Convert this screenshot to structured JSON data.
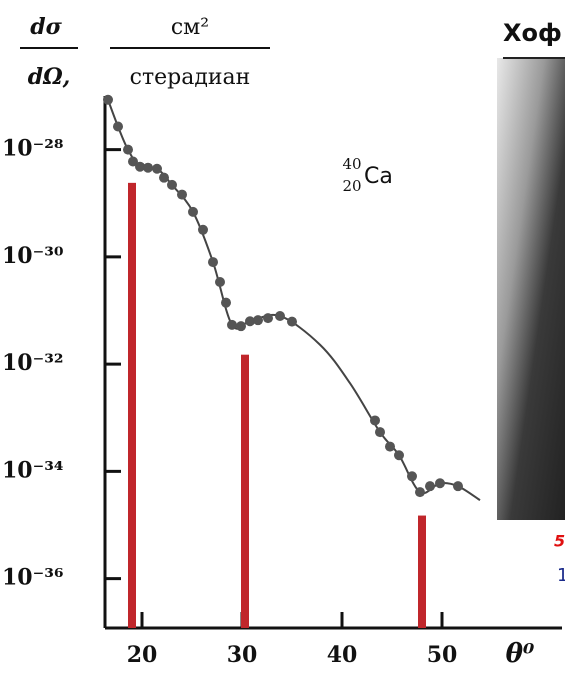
{
  "chart_data": {
    "type": "scatter-line",
    "y_label": {
      "numerator": "dσ",
      "denominator": "dΩ,",
      "unit_numerator": "см²",
      "unit_denominator": "стерадиан"
    },
    "x_label": "θ⁰",
    "annotation": {
      "mass": "40",
      "charge": "20",
      "symbol": "Ca"
    },
    "xlim": [
      16.3,
      62
    ],
    "xticks": [
      20,
      30,
      40,
      50
    ],
    "ylim": [
      1.2e-37,
      1e-27
    ],
    "yticks": [
      {
        "value": 1e-28,
        "label": "10⁻²⁸"
      },
      {
        "value": 1e-30,
        "label": "10⁻³⁰"
      },
      {
        "value": 1e-32,
        "label": "10⁻³²"
      },
      {
        "value": 1e-34,
        "label": "10⁻³⁴"
      },
      {
        "value": 1e-36,
        "label": "10⁻³⁶"
      }
    ],
    "log_y": true,
    "series": [
      {
        "kind": "points",
        "color": "#555555",
        "x": [
          16.6,
          17.6,
          18.6,
          19.1,
          19.8,
          20.6,
          21.5,
          22.2,
          23.0,
          24.0,
          25.1,
          26.1,
          27.1,
          27.8,
          28.4,
          29.0,
          29.9,
          30.8,
          31.6,
          32.6,
          33.8,
          35.0,
          43.3,
          43.8,
          44.8,
          45.7,
          47.0,
          47.8,
          48.8,
          49.8,
          51.6
        ],
        "values": [
          8.5e-28,
          2.7e-28,
          1e-28,
          6e-29,
          4.8e-29,
          4.6e-29,
          4.4e-29,
          3e-29,
          2.2e-29,
          1.45e-29,
          6.9e-30,
          3.2e-30,
          8e-31,
          3.4e-31,
          1.4e-31,
          5.4e-32,
          5.1e-32,
          6.3e-32,
          6.6e-32,
          7.2e-32,
          7.9e-32,
          6.2e-32,
          8.9e-34,
          5.4e-34,
          2.9e-34,
          2e-34,
          8.1e-35,
          4.1e-35,
          5.3e-35,
          6e-35,
          5.3e-35
        ]
      },
      {
        "kind": "curve",
        "color": "#444444",
        "x": [
          16.6,
          17.6,
          18.6,
          19.8,
          21.5,
          23.0,
          25.1,
          27.1,
          29.0,
          30.8,
          33.8,
          37.8,
          40.8,
          43.8,
          45.7,
          47.8,
          49.8,
          51.6,
          53.8
        ],
        "values": [
          8.5e-28,
          2.7e-28,
          1e-28,
          4.8e-29,
          4.4e-29,
          2.2e-29,
          6.9e-30,
          8e-31,
          5.4e-32,
          6.3e-32,
          7.9e-32,
          2.3e-32,
          4.4e-33,
          5.4e-34,
          2e-34,
          4.1e-35,
          6e-35,
          5.3e-35,
          2.9e-35
        ]
      },
      {
        "kind": "bars",
        "color": "#c0262b",
        "x": [
          19.0,
          30.3,
          48.0
        ],
        "values": [
          2.4e-29,
          1.5e-32,
          1.5e-35
        ]
      }
    ]
  },
  "photo": {
    "title": "Хоф",
    "note_red": "5",
    "note_blue": "1"
  }
}
